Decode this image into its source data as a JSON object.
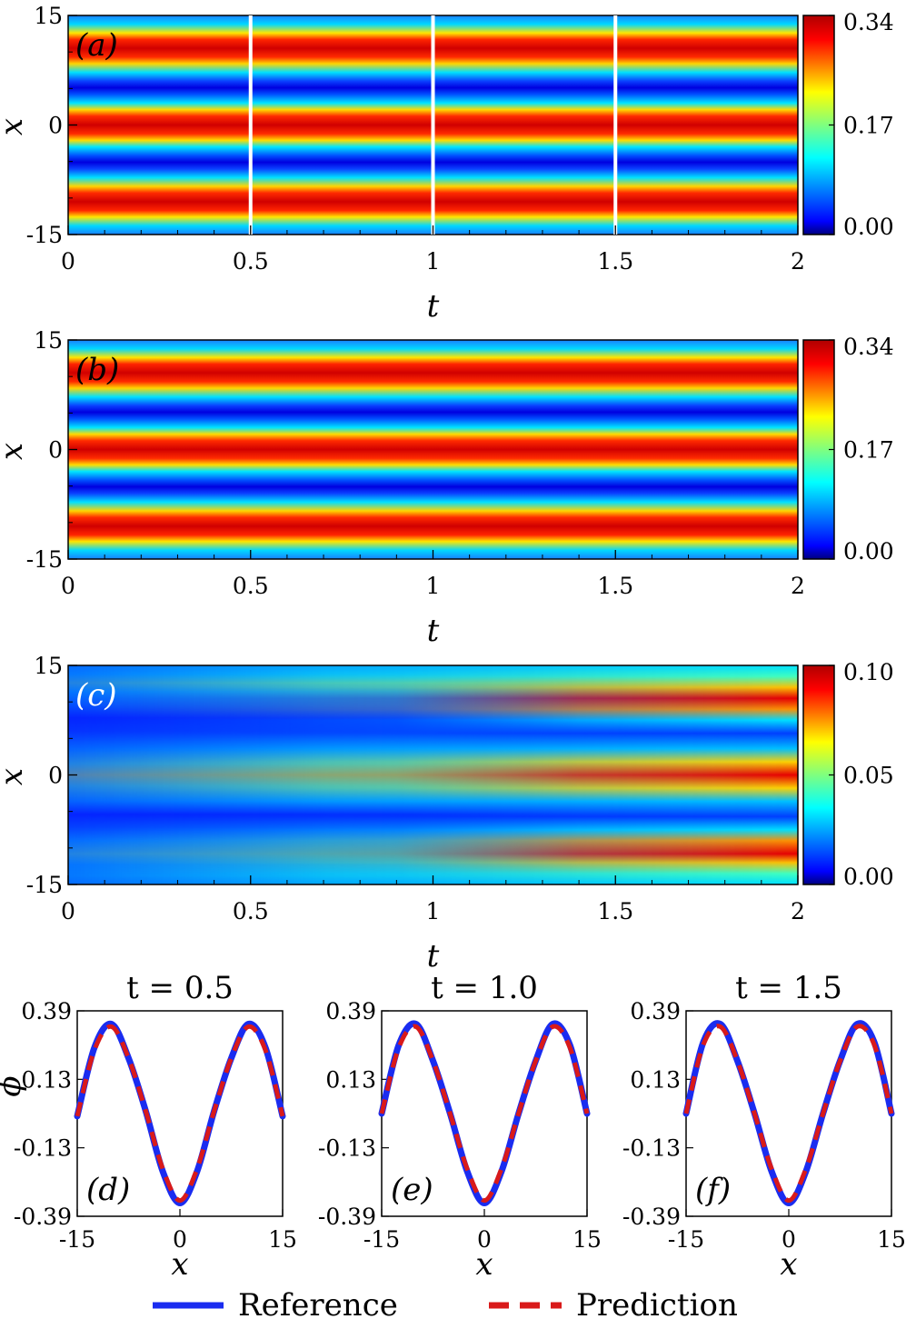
{
  "colormap": "jet",
  "colors": {
    "reference": "#1a2cf0",
    "prediction": "#d91a1a",
    "marker_lines": "#ffffff"
  },
  "heatmaps": [
    {
      "label": "(a)",
      "xlabel": "t",
      "ylabel": "x",
      "x_ticks": [
        "0",
        "0.5",
        "1",
        "1.5",
        "2"
      ],
      "y_ticks": [
        "15",
        "0",
        "-15"
      ],
      "colorbar_ticks": [
        "0.34",
        "0.17",
        "0.00"
      ],
      "value_range": [
        0,
        0.34
      ]
    },
    {
      "label": "(b)",
      "xlabel": "t",
      "ylabel": "x",
      "x_ticks": [
        "0",
        "0.5",
        "1",
        "1.5",
        "2"
      ],
      "y_ticks": [
        "15",
        "0",
        "-15"
      ],
      "colorbar_ticks": [
        "0.34",
        "0.17",
        "0.00"
      ],
      "value_range": [
        0,
        0.34
      ]
    },
    {
      "label": "(c)",
      "xlabel": "t",
      "ylabel": "x",
      "x_ticks": [
        "0",
        "0.5",
        "1",
        "1.5",
        "2"
      ],
      "y_ticks": [
        "15",
        "0",
        "-15"
      ],
      "colorbar_ticks": [
        "0.10",
        "0.05",
        "0.00"
      ],
      "value_range": [
        0,
        0.1
      ]
    }
  ],
  "profiles": [
    {
      "label": "(d)",
      "title": "t = 0.5",
      "xlabel": "x",
      "ylabel": "ϕ",
      "x_ticks": [
        "-15",
        "0",
        "15"
      ],
      "y_ticks": [
        "0.39",
        "0.13",
        "-0.13",
        "-0.39"
      ]
    },
    {
      "label": "(e)",
      "title": "t = 1.0",
      "xlabel": "x",
      "ylabel": "",
      "x_ticks": [
        "-15",
        "0",
        "15"
      ],
      "y_ticks": [
        "0.39",
        "0.13",
        "-0.13",
        "-0.39"
      ]
    },
    {
      "label": "(f)",
      "title": "t = 1.5",
      "xlabel": "x",
      "ylabel": "",
      "x_ticks": [
        "-15",
        "0",
        "15"
      ],
      "y_ticks": [
        "0.39",
        "0.13",
        "-0.13",
        "-0.39"
      ]
    }
  ],
  "legend": {
    "reference": "Reference",
    "prediction": "Prediction"
  },
  "chart_data": [
    {
      "type": "heatmap",
      "panel": "(a)",
      "xlabel": "t",
      "ylabel": "x",
      "xlim": [
        0,
        2
      ],
      "ylim": [
        -15,
        15
      ],
      "colorbar": {
        "min": 0.0,
        "max": 0.34,
        "ticks": [
          0.0,
          0.17,
          0.34
        ]
      },
      "band_centers_x": [
        10.5,
        0,
        -10.5
      ],
      "marker_lines_t": [
        0.5,
        1.0,
        1.5
      ]
    },
    {
      "type": "heatmap",
      "panel": "(b)",
      "xlabel": "t",
      "ylabel": "x",
      "xlim": [
        0,
        2
      ],
      "ylim": [
        -15,
        15
      ],
      "colorbar": {
        "min": 0.0,
        "max": 0.34,
        "ticks": [
          0.0,
          0.17,
          0.34
        ]
      },
      "band_centers_x": [
        10.5,
        0,
        -10.5
      ]
    },
    {
      "type": "heatmap",
      "panel": "(c)",
      "xlabel": "t",
      "ylabel": "x",
      "xlim": [
        0,
        2
      ],
      "ylim": [
        -15,
        15
      ],
      "colorbar": {
        "min": 0.0,
        "max": 0.1,
        "ticks": [
          0.0,
          0.05,
          0.1
        ]
      },
      "band_centers_x": [
        10.5,
        0,
        -10.5
      ]
    },
    {
      "type": "line",
      "panel": "(d)",
      "title": "t = 0.5",
      "xlabel": "x",
      "ylabel": "ϕ",
      "xlim": [
        -15,
        15
      ],
      "ylim": [
        -0.39,
        0.39
      ],
      "x": [
        -15,
        -12.5,
        -10,
        -7.5,
        -5,
        -2.5,
        0,
        2.5,
        5,
        7.5,
        10,
        12.5,
        15
      ],
      "series": [
        {
          "name": "Reference",
          "values": [
            -0.01,
            0.25,
            0.34,
            0.21,
            0.01,
            -0.22,
            -0.34,
            -0.22,
            0.01,
            0.21,
            0.34,
            0.25,
            -0.01
          ]
        },
        {
          "name": "Prediction",
          "values": [
            -0.01,
            0.24,
            0.33,
            0.21,
            0.01,
            -0.21,
            -0.33,
            -0.21,
            0.01,
            0.21,
            0.33,
            0.24,
            -0.01
          ]
        }
      ]
    },
    {
      "type": "line",
      "panel": "(e)",
      "title": "t = 1.0",
      "xlabel": "x",
      "xlim": [
        -15,
        15
      ],
      "ylim": [
        -0.39,
        0.39
      ],
      "x": [
        -15,
        -12.5,
        -10,
        -7.5,
        -5,
        -2.5,
        0,
        2.5,
        5,
        7.5,
        10,
        12.5,
        15
      ],
      "series": [
        {
          "name": "Reference",
          "values": [
            0.0,
            0.26,
            0.34,
            0.2,
            0.0,
            -0.22,
            -0.34,
            -0.22,
            0.0,
            0.2,
            0.34,
            0.26,
            0.0
          ]
        },
        {
          "name": "Prediction",
          "values": [
            0.0,
            0.25,
            0.33,
            0.2,
            0.0,
            -0.21,
            -0.33,
            -0.21,
            0.0,
            0.2,
            0.33,
            0.25,
            0.0
          ]
        }
      ]
    },
    {
      "type": "line",
      "panel": "(f)",
      "title": "t = 1.5",
      "xlabel": "x",
      "xlim": [
        -15,
        15
      ],
      "ylim": [
        -0.39,
        0.39
      ],
      "x": [
        -15,
        -12.5,
        -10,
        -7.5,
        -5,
        -2.5,
        0,
        2.5,
        5,
        7.5,
        10,
        12.5,
        15
      ],
      "series": [
        {
          "name": "Reference",
          "values": [
            0.0,
            0.27,
            0.34,
            0.2,
            0.0,
            -0.22,
            -0.34,
            -0.22,
            0.0,
            0.2,
            0.34,
            0.27,
            0.0
          ]
        },
        {
          "name": "Prediction",
          "values": [
            0.0,
            0.26,
            0.33,
            0.2,
            0.0,
            -0.21,
            -0.33,
            -0.21,
            0.0,
            0.2,
            0.33,
            0.26,
            0.0
          ]
        }
      ]
    }
  ]
}
